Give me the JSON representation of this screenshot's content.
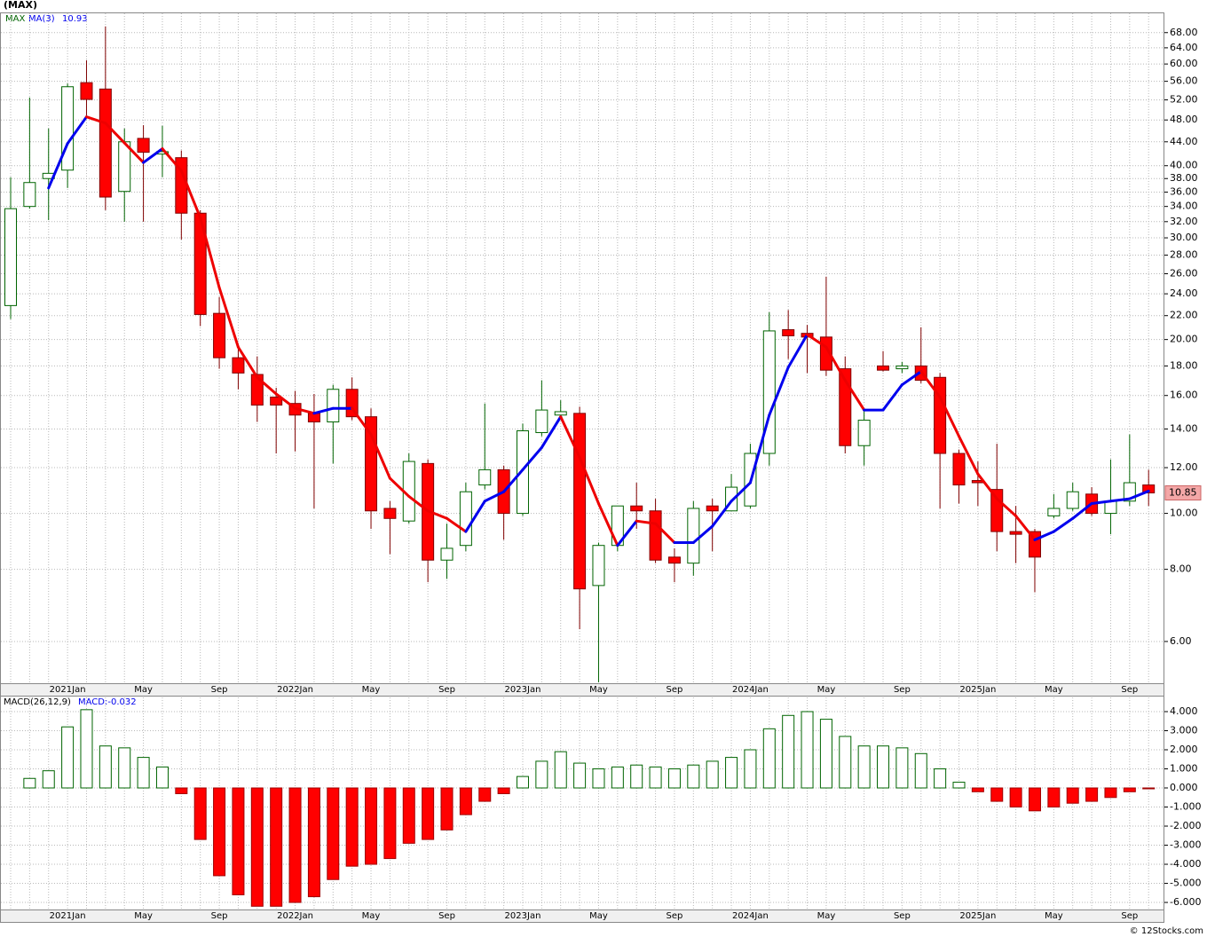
{
  "chart_data": [
    {
      "type": "candlestick",
      "title": "(MAX)",
      "ticker": "MAX",
      "log": true,
      "grid": true,
      "up_color": "#006400",
      "down_color": "#ff0000",
      "down_edge": "#800000",
      "categories": [
        null,
        null,
        null,
        "2021Jan",
        null,
        null,
        null,
        "May",
        null,
        null,
        null,
        "Sep",
        null,
        null,
        null,
        "2022Jan",
        null,
        null,
        null,
        "May",
        null,
        null,
        null,
        "Sep",
        null,
        null,
        null,
        "2023Jan",
        null,
        null,
        null,
        "May",
        null,
        null,
        null,
        "Sep",
        null,
        null,
        null,
        "2024Jan",
        null,
        null,
        null,
        "May",
        null,
        null,
        null,
        "Sep",
        null,
        null,
        null,
        "2025Jan",
        null,
        null,
        null,
        "May",
        null,
        null,
        null,
        "Sep",
        null
      ],
      "open": [
        22.9,
        34.0,
        38.0,
        39.3,
        55.7,
        54.3,
        36.1,
        44.6,
        41.9,
        41.3,
        33.1,
        22.2,
        18.6,
        17.4,
        15.9,
        15.5,
        14.9,
        14.4,
        16.4,
        14.7,
        10.2,
        9.7,
        12.2,
        8.3,
        8.8,
        11.2,
        11.9,
        10.0,
        13.8,
        14.8,
        14.9,
        7.5,
        8.8,
        10.3,
        10.1,
        8.4,
        8.2,
        10.3,
        10.1,
        10.3,
        12.7,
        20.8,
        20.5,
        20.2,
        17.8,
        13.1,
        18.0,
        17.8,
        18.0,
        17.2,
        12.7,
        11.4,
        11.0,
        9.3,
        9.3,
        9.9,
        10.2,
        10.8,
        10.0,
        10.5,
        11.2
      ],
      "high": [
        38.2,
        52.5,
        46.4,
        55.5,
        60.9,
        69.7,
        46.4,
        47.0,
        46.9,
        42.5,
        33.5,
        23.7,
        19.5,
        18.7,
        16.5,
        16.3,
        16.1,
        16.7,
        17.2,
        15.2,
        10.5,
        12.7,
        12.4,
        9.6,
        11.3,
        15.5,
        12.1,
        14.3,
        17.0,
        15.7,
        15.3,
        8.9,
        10.3,
        11.3,
        10.6,
        8.7,
        10.5,
        10.6,
        11.7,
        13.2,
        22.3,
        22.5,
        21.2,
        25.7,
        18.7,
        15.2,
        19.1,
        18.3,
        21.0,
        17.5,
        12.9,
        12.3,
        13.2,
        10.3,
        9.4,
        10.8,
        11.3,
        11.1,
        12.4,
        13.7,
        11.9
      ],
      "low": [
        21.7,
        33.7,
        32.2,
        36.6,
        48.9,
        33.5,
        32.0,
        32.0,
        38.2,
        29.8,
        21.1,
        17.8,
        16.4,
        14.4,
        12.7,
        12.8,
        10.2,
        12.2,
        14.5,
        9.4,
        8.5,
        9.6,
        7.6,
        7.7,
        8.6,
        11.0,
        9.0,
        9.9,
        13.6,
        14.7,
        6.3,
        5.1,
        8.6,
        9.4,
        8.2,
        7.6,
        7.8,
        8.6,
        10.1,
        10.2,
        12.1,
        18.5,
        17.5,
        17.3,
        12.7,
        12.1,
        17.6,
        17.5,
        16.8,
        10.2,
        10.4,
        10.3,
        8.6,
        8.2,
        7.3,
        9.8,
        10.1,
        9.9,
        9.2,
        10.3,
        10.3
      ],
      "close": [
        33.7,
        37.4,
        38.8,
        54.8,
        52.1,
        35.3,
        44.0,
        42.2,
        42.3,
        33.1,
        22.1,
        18.6,
        17.5,
        15.4,
        15.4,
        14.8,
        14.4,
        16.4,
        14.7,
        10.1,
        9.8,
        12.3,
        8.3,
        8.7,
        10.9,
        11.9,
        10.0,
        13.9,
        15.1,
        15.0,
        7.4,
        8.8,
        10.3,
        10.1,
        8.3,
        8.2,
        10.2,
        10.1,
        11.1,
        12.7,
        20.7,
        20.3,
        20.2,
        17.7,
        13.1,
        14.5,
        17.7,
        18.0,
        17.0,
        12.7,
        11.2,
        11.3,
        9.3,
        9.2,
        8.4,
        10.2,
        10.9,
        10.0,
        10.5,
        11.3,
        10.85
      ],
      "series": [
        {
          "name": "MA(3)",
          "color": "#0000ee",
          "down_color": "#ee0000",
          "values": [
            null,
            null,
            36.6,
            43.7,
            48.6,
            47.4,
            43.8,
            40.5,
            42.8,
            39.2,
            32.5,
            24.6,
            19.4,
            17.2,
            16.1,
            15.2,
            14.9,
            15.2,
            15.2,
            13.7,
            11.5,
            10.7,
            10.1,
            9.8,
            9.3,
            10.5,
            10.9,
            11.9,
            13.0,
            14.7,
            12.5,
            10.4,
            8.8,
            9.7,
            9.6,
            8.9,
            8.9,
            9.5,
            10.5,
            11.3,
            14.8,
            17.9,
            20.4,
            19.4,
            17.0,
            15.1,
            15.1,
            16.7,
            17.6,
            15.9,
            13.6,
            11.7,
            10.6,
            9.9,
            9.0,
            9.3,
            9.8,
            10.4,
            10.5,
            10.6,
            10.93
          ]
        }
      ],
      "ylim": [
        5.08,
        73.7
      ],
      "yticks": [
        {
          "value": 6,
          "label": "6.00"
        },
        {
          "value": 8,
          "label": "8.00"
        },
        {
          "value": 10,
          "label": "10.00"
        },
        {
          "value": 12,
          "label": "12.00"
        },
        {
          "value": 14,
          "label": "14.00"
        },
        {
          "value": 16,
          "label": "16.00"
        },
        {
          "value": 18,
          "label": "18.00"
        },
        {
          "value": 20,
          "label": "20.00"
        },
        {
          "value": 22,
          "label": "22.00"
        },
        {
          "value": 24,
          "label": "24.00"
        },
        {
          "value": 26,
          "label": "26.00"
        },
        {
          "value": 28,
          "label": "28.00"
        },
        {
          "value": 30,
          "label": "30.00"
        },
        {
          "value": 32,
          "label": "32.00"
        },
        {
          "value": 34,
          "label": "34.00"
        },
        {
          "value": 36,
          "label": "36.00"
        },
        {
          "value": 38,
          "label": "38.00"
        },
        {
          "value": 40,
          "label": "40.00"
        },
        {
          "value": 44,
          "label": "44.00"
        },
        {
          "value": 48,
          "label": "48.00"
        },
        {
          "value": 52,
          "label": "52.00"
        },
        {
          "value": 56,
          "label": "56.00"
        },
        {
          "value": 60,
          "label": "60.00"
        },
        {
          "value": 64,
          "label": "64.00"
        },
        {
          "value": 68,
          "label": "68.00"
        }
      ],
      "last_label": "10.85"
    },
    {
      "type": "bar",
      "title": "MACD(26,12,9)",
      "grid": true,
      "up_color": "#006400",
      "down_color": "#ff0000",
      "value_label": "MACD:-0.032",
      "label_color": "#0000ee",
      "values": [
        null,
        0.5,
        0.9,
        3.2,
        4.1,
        2.2,
        2.1,
        1.6,
        1.1,
        -0.3,
        -2.7,
        -4.6,
        -5.6,
        -6.2,
        -6.2,
        -6.0,
        -5.7,
        -4.8,
        -4.1,
        -4.0,
        -3.7,
        -2.9,
        -2.7,
        -2.2,
        -1.4,
        -0.7,
        -0.3,
        0.6,
        1.4,
        1.9,
        1.3,
        1.0,
        1.1,
        1.2,
        1.1,
        1.0,
        1.2,
        1.4,
        1.6,
        2.0,
        3.1,
        3.8,
        4.0,
        3.6,
        2.7,
        2.2,
        2.2,
        2.1,
        1.8,
        1.0,
        0.3,
        -0.2,
        -0.7,
        -1.0,
        -1.2,
        -1.0,
        -0.8,
        -0.7,
        -0.5,
        -0.2,
        -0.032
      ],
      "ylim": [
        -6.37,
        4.79
      ],
      "yticks": [
        {
          "value": 4,
          "label": "4.000"
        },
        {
          "value": 3,
          "label": "3.000"
        },
        {
          "value": 2,
          "label": "2.000"
        },
        {
          "value": 1,
          "label": "1.000"
        },
        {
          "value": 0,
          "label": "0.000"
        },
        {
          "value": -1,
          "label": "-1.000"
        },
        {
          "value": -2,
          "label": "-2.000"
        },
        {
          "value": -3,
          "label": "-3.000"
        },
        {
          "value": -4,
          "label": "-4.000"
        },
        {
          "value": -5,
          "label": "-5.000"
        },
        {
          "value": -6,
          "label": "-6.000"
        }
      ]
    }
  ],
  "footer": "© 12Stocks.com"
}
